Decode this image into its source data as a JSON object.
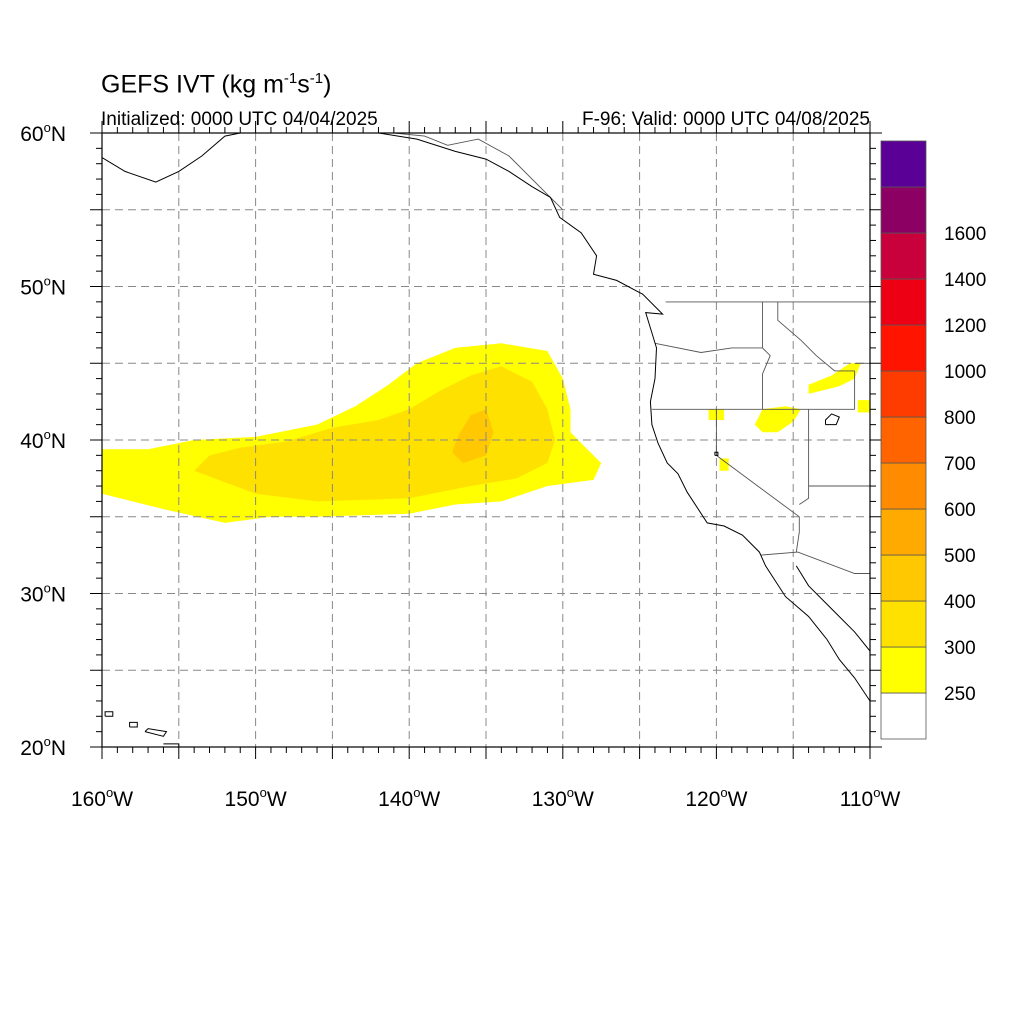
{
  "title": {
    "prefix": "GEFS IVT (kg m",
    "exp1": "-1",
    "mid": "s",
    "exp2": "-1",
    "suffix": ")"
  },
  "initialized": "Initialized: 0000 UTC 04/04/2025",
  "valid": "F-96: Valid: 0000 UTC 04/08/2025",
  "map": {
    "lon_range": [
      -160,
      -110
    ],
    "lat_range": [
      20,
      60
    ],
    "grid_lon_step": 5,
    "grid_lat_step": 5
  },
  "lat_labels": [
    {
      "value": 60,
      "text": "60",
      "hemi": "N"
    },
    {
      "value": 50,
      "text": "50",
      "hemi": "N"
    },
    {
      "value": 40,
      "text": "40",
      "hemi": "N"
    },
    {
      "value": 30,
      "text": "30",
      "hemi": "N"
    },
    {
      "value": 20,
      "text": "20",
      "hemi": "N"
    }
  ],
  "lon_labels": [
    {
      "value": -160,
      "text": "160",
      "hemi": "W"
    },
    {
      "value": -150,
      "text": "150",
      "hemi": "W"
    },
    {
      "value": -140,
      "text": "140",
      "hemi": "W"
    },
    {
      "value": -130,
      "text": "130",
      "hemi": "W"
    },
    {
      "value": -120,
      "text": "120",
      "hemi": "W"
    },
    {
      "value": -110,
      "text": "110",
      "hemi": "W"
    }
  ],
  "colorbar": {
    "bins": [
      {
        "color": "#ffffff"
      },
      {
        "color": "#ffff00"
      },
      {
        "color": "#ffe100"
      },
      {
        "color": "#ffc800"
      },
      {
        "color": "#ffaa00"
      },
      {
        "color": "#ff8c00"
      },
      {
        "color": "#ff6400"
      },
      {
        "color": "#ff3c00"
      },
      {
        "color": "#ff1400"
      },
      {
        "color": "#ee0014"
      },
      {
        "color": "#c8003c"
      },
      {
        "color": "#8c0064"
      },
      {
        "color": "#5a0096"
      }
    ],
    "labels": [
      "250",
      "300",
      "400",
      "500",
      "600",
      "700",
      "800",
      "1000",
      "1200",
      "1400",
      "1600"
    ]
  },
  "ivt_regions": [
    {
      "level": 1,
      "color": "#ffff00",
      "points": [
        [
          -160,
          36.5
        ],
        [
          -156,
          35.5
        ],
        [
          -152,
          34.6
        ],
        [
          -149,
          35.0
        ],
        [
          -146,
          35.0
        ],
        [
          -140,
          35.2
        ],
        [
          -137,
          35.8
        ],
        [
          -134,
          36.0
        ],
        [
          -131,
          37.0
        ],
        [
          -128,
          37.4
        ],
        [
          -127.5,
          38.5
        ],
        [
          -128.5,
          39.5
        ],
        [
          -129.5,
          40.5
        ],
        [
          -129.5,
          42.0
        ],
        [
          -130,
          44.0
        ],
        [
          -131,
          45.8
        ],
        [
          -134,
          46.3
        ],
        [
          -137,
          46.0
        ],
        [
          -139.5,
          45.0
        ],
        [
          -141.5,
          43.5
        ],
        [
          -143.5,
          42.2
        ],
        [
          -146,
          41.0
        ],
        [
          -150,
          40.2
        ],
        [
          -154,
          40.0
        ],
        [
          -157,
          39.4
        ],
        [
          -160,
          39.4
        ]
      ]
    },
    {
      "level": 2,
      "color": "#ffe100",
      "points": [
        [
          -154,
          38.0
        ],
        [
          -150,
          36.5
        ],
        [
          -146,
          36.0
        ],
        [
          -140,
          36.2
        ],
        [
          -136,
          37.0
        ],
        [
          -133,
          37.5
        ],
        [
          -131,
          38.5
        ],
        [
          -130.5,
          40.0
        ],
        [
          -131,
          42.0
        ],
        [
          -132,
          43.8
        ],
        [
          -134,
          44.8
        ],
        [
          -136,
          44.2
        ],
        [
          -138,
          43.2
        ],
        [
          -140,
          42.0
        ],
        [
          -142,
          41.3
        ],
        [
          -145,
          40.8
        ],
        [
          -148,
          39.9
        ],
        [
          -151,
          39.5
        ],
        [
          -153,
          39.0
        ]
      ]
    },
    {
      "level": 3,
      "color": "#ffc800",
      "points": [
        [
          -136.5,
          38.5
        ],
        [
          -135,
          39.0
        ],
        [
          -134.5,
          40.5
        ],
        [
          -135,
          42.0
        ],
        [
          -136,
          41.6
        ],
        [
          -136.8,
          40.3
        ],
        [
          -137.2,
          39.2
        ]
      ]
    },
    {
      "level": 1,
      "color": "#ffff00",
      "points": [
        [
          -117,
          40.5
        ],
        [
          -116,
          40.5
        ],
        [
          -115,
          41.2
        ],
        [
          -114.5,
          42.0
        ],
        [
          -115.5,
          42.2
        ],
        [
          -117,
          42.0
        ],
        [
          -117.5,
          41.0
        ]
      ]
    },
    {
      "level": 1,
      "color": "#ffff00",
      "points": [
        [
          -114,
          43.0
        ],
        [
          -112,
          43.5
        ],
        [
          -111,
          44.0
        ],
        [
          -110.6,
          45.0
        ],
        [
          -111.3,
          45.0
        ],
        [
          -112.5,
          44.2
        ],
        [
          -114,
          43.6
        ]
      ]
    },
    {
      "level": 1,
      "color": "#ffff00",
      "points": [
        [
          -110.8,
          41.8
        ],
        [
          -110,
          41.8
        ],
        [
          -110,
          42.6
        ],
        [
          -110.8,
          42.6
        ]
      ]
    },
    {
      "level": 1,
      "color": "#ffff00",
      "points": [
        [
          -120.5,
          41.3
        ],
        [
          -119.5,
          41.3
        ],
        [
          -119.5,
          42.0
        ],
        [
          -120.5,
          42.0
        ]
      ]
    },
    {
      "level": 1,
      "color": "#ffff00",
      "points": [
        [
          -119.8,
          38.0
        ],
        [
          -119.2,
          38.0
        ],
        [
          -119.2,
          38.8
        ],
        [
          -119.8,
          38.8
        ]
      ]
    }
  ],
  "coastlines": [
    {
      "name": "west-coast",
      "points": [
        [
          -110,
          23.0
        ],
        [
          -111,
          24.5
        ],
        [
          -112,
          25.7
        ],
        [
          -112.8,
          27.0
        ],
        [
          -114,
          28.5
        ],
        [
          -115.5,
          29.8
        ],
        [
          -116.8,
          31.8
        ],
        [
          -117.2,
          32.7
        ],
        [
          -118.3,
          33.8
        ],
        [
          -119.5,
          34.4
        ],
        [
          -120.6,
          34.6
        ],
        [
          -121.9,
          36.6
        ],
        [
          -122.5,
          37.8
        ],
        [
          -123.2,
          38.5
        ],
        [
          -123.8,
          39.8
        ],
        [
          -124.2,
          41.0
        ],
        [
          -124.3,
          42.5
        ],
        [
          -124.0,
          44.0
        ],
        [
          -123.9,
          46.0
        ],
        [
          -124.6,
          48.3
        ],
        [
          -123.5,
          48.2
        ],
        [
          -124.8,
          49.5
        ],
        [
          -126.5,
          50.4
        ],
        [
          -128.0,
          50.8
        ],
        [
          -127.8,
          52.0
        ],
        [
          -128.8,
          53.5
        ],
        [
          -130.2,
          54.5
        ],
        [
          -130.8,
          55.8
        ],
        [
          -132.0,
          56.5
        ],
        [
          -133.5,
          57.5
        ],
        [
          -135.0,
          58.3
        ],
        [
          -137.0,
          58.8
        ],
        [
          -139.5,
          59.6
        ],
        [
          -142.0,
          60.0
        ]
      ]
    },
    {
      "name": "gulf-of-california-east",
      "points": [
        [
          -114.8,
          31.8
        ],
        [
          -114.0,
          30.5
        ],
        [
          -112.5,
          29.0
        ],
        [
          -111.0,
          27.5
        ],
        [
          -109.8,
          26.0
        ],
        [
          -109.0,
          25.0
        ]
      ]
    },
    {
      "name": "alaska-southwest",
      "points": [
        [
          -160,
          58.4
        ],
        [
          -158.5,
          57.5
        ],
        [
          -156.5,
          56.8
        ],
        [
          -155.0,
          57.5
        ],
        [
          -153.5,
          58.5
        ],
        [
          -152.0,
          59.8
        ],
        [
          -151.0,
          60.0
        ]
      ]
    },
    {
      "name": "hawaii-oahu",
      "points": [
        [
          -158.2,
          21.3
        ],
        [
          -157.7,
          21.3
        ],
        [
          -157.7,
          21.6
        ],
        [
          -158.2,
          21.6
        ],
        [
          -158.2,
          21.3
        ]
      ]
    },
    {
      "name": "hawaii-big-island",
      "points": [
        [
          -156,
          19.8
        ],
        [
          -155.0,
          19.8
        ],
        [
          -155.0,
          20.2
        ],
        [
          -156,
          20.2
        ]
      ]
    },
    {
      "name": "kauai",
      "points": [
        [
          -159.8,
          22.0
        ],
        [
          -159.3,
          22.0
        ],
        [
          -159.3,
          22.3
        ],
        [
          -159.8,
          22.3
        ],
        [
          -159.8,
          22.0
        ]
      ]
    },
    {
      "name": "molokai-maui",
      "points": [
        [
          -157.2,
          21.0
        ],
        [
          -156.0,
          20.7
        ],
        [
          -155.8,
          21.0
        ],
        [
          -157.0,
          21.2
        ],
        [
          -157.2,
          21.0
        ]
      ]
    }
  ],
  "borders": [
    {
      "name": "us-canada",
      "points": [
        [
          -123.3,
          49.0
        ],
        [
          -110,
          49.0
        ]
      ]
    },
    {
      "name": "us-mexico",
      "points": [
        [
          -117.1,
          32.5
        ],
        [
          -114.7,
          32.7
        ],
        [
          -111.0,
          31.3
        ],
        [
          -110,
          31.3
        ]
      ]
    },
    {
      "name": "alaska-canada",
      "points": [
        [
          -141.0,
          60.0
        ],
        [
          -139.0,
          59.8
        ],
        [
          -137.5,
          59.2
        ],
        [
          -135.5,
          59.6
        ],
        [
          -133.5,
          58.5
        ],
        [
          -131.0,
          56.0
        ],
        [
          -130.0,
          55.0
        ]
      ]
    },
    {
      "name": "or-ca",
      "points": [
        [
          -124.2,
          42.0
        ],
        [
          -120.0,
          42.0
        ],
        [
          -111.0,
          42.0
        ]
      ]
    },
    {
      "name": "wa-or",
      "points": [
        [
          -124.0,
          46.3
        ],
        [
          -121.0,
          45.7
        ],
        [
          -119.0,
          46.0
        ],
        [
          -117.0,
          46.0
        ]
      ]
    },
    {
      "name": "wa-id",
      "points": [
        [
          -117.0,
          49.0
        ],
        [
          -117.0,
          46.0
        ]
      ]
    },
    {
      "name": "or-id",
      "points": [
        [
          -117.0,
          46.0
        ],
        [
          -116.5,
          45.5
        ],
        [
          -117.0,
          44.3
        ],
        [
          -117.0,
          42.0
        ]
      ]
    },
    {
      "name": "ca-nv",
      "points": [
        [
          -120.0,
          42.0
        ],
        [
          -120.0,
          39.0
        ],
        [
          -114.6,
          35.0
        ],
        [
          -114.6,
          34.0
        ],
        [
          -114.8,
          32.7
        ]
      ]
    },
    {
      "name": "nv-ut",
      "points": [
        [
          -114.0,
          42.0
        ],
        [
          -114.0,
          36.2
        ],
        [
          -114.6,
          35.8
        ]
      ]
    },
    {
      "name": "id-mt",
      "points": [
        [
          -116.0,
          49.0
        ],
        [
          -116.0,
          47.8
        ],
        [
          -114.5,
          46.5
        ],
        [
          -113.5,
          45.5
        ],
        [
          -112.3,
          44.5
        ],
        [
          -111.0,
          44.5
        ]
      ]
    },
    {
      "name": "id-wy",
      "points": [
        [
          -111.0,
          44.5
        ],
        [
          -111.0,
          42.0
        ]
      ]
    },
    {
      "name": "ut-az",
      "points": [
        [
          -114.0,
          37.0
        ],
        [
          -110,
          37.0
        ]
      ]
    },
    {
      "name": "mt-wy",
      "points": [
        [
          -111.0,
          45.0
        ],
        [
          -110,
          45.0
        ]
      ]
    }
  ],
  "lakes": [
    {
      "name": "great-salt-lake",
      "points": [
        [
          -112.9,
          41.0
        ],
        [
          -112.2,
          41.0
        ],
        [
          -112.0,
          41.5
        ],
        [
          -112.5,
          41.7
        ],
        [
          -112.9,
          41.3
        ],
        [
          -112.9,
          41.0
        ]
      ]
    },
    {
      "name": "lake-tahoe",
      "points": [
        [
          -120.1,
          39.0
        ],
        [
          -119.9,
          39.0
        ],
        [
          -119.9,
          39.2
        ],
        [
          -120.1,
          39.2
        ],
        [
          -120.1,
          39.0
        ]
      ]
    }
  ]
}
